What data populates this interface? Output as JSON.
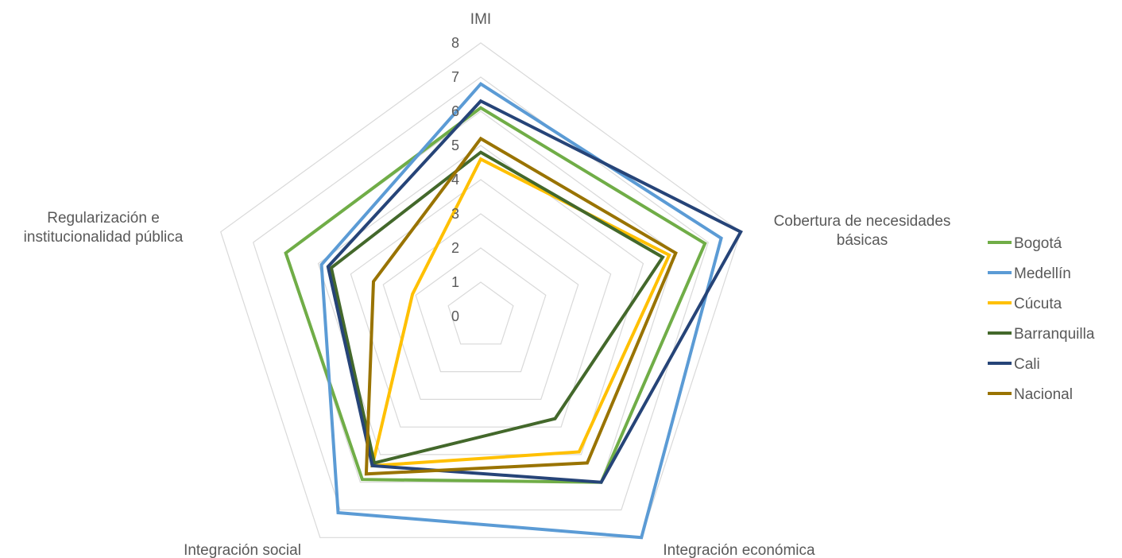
{
  "chart_data": {
    "type": "radar",
    "title": "",
    "axes": [
      {
        "label_lines": [
          "IMI"
        ]
      },
      {
        "label_lines": [
          "Cobertura de necesidades",
          "básicas"
        ]
      },
      {
        "label_lines": [
          "Integración económica"
        ]
      },
      {
        "label_lines": [
          "Integración social"
        ]
      },
      {
        "label_lines": [
          "Regularización e",
          "institucionalidad pública"
        ]
      }
    ],
    "rmin": 0,
    "rmax": 8,
    "ticks": [
      "0",
      "1",
      "2",
      "3",
      "4",
      "5",
      "6",
      "7",
      "8"
    ],
    "grid": true,
    "legend_position": "right",
    "series": [
      {
        "name": "Bogotá",
        "color": "#70ad47",
        "values": [
          6.1,
          6.9,
          6.0,
          5.9,
          6.0
        ]
      },
      {
        "name": "Medellín",
        "color": "#5b9bd5",
        "values": [
          6.8,
          7.4,
          8.0,
          7.1,
          4.9
        ]
      },
      {
        "name": "Cúcuta",
        "color": "#ffc000",
        "values": [
          4.6,
          5.8,
          4.9,
          5.4,
          2.1
        ]
      },
      {
        "name": "Barranquilla",
        "color": "#43682b",
        "values": [
          4.8,
          5.6,
          3.7,
          5.3,
          4.6
        ]
      },
      {
        "name": "Cali",
        "color": "#264478",
        "values": [
          6.3,
          8.0,
          6.0,
          5.4,
          4.7
        ]
      },
      {
        "name": "Nacional",
        "color": "#997300",
        "values": [
          5.2,
          6.0,
          5.3,
          5.7,
          3.3
        ]
      }
    ]
  }
}
